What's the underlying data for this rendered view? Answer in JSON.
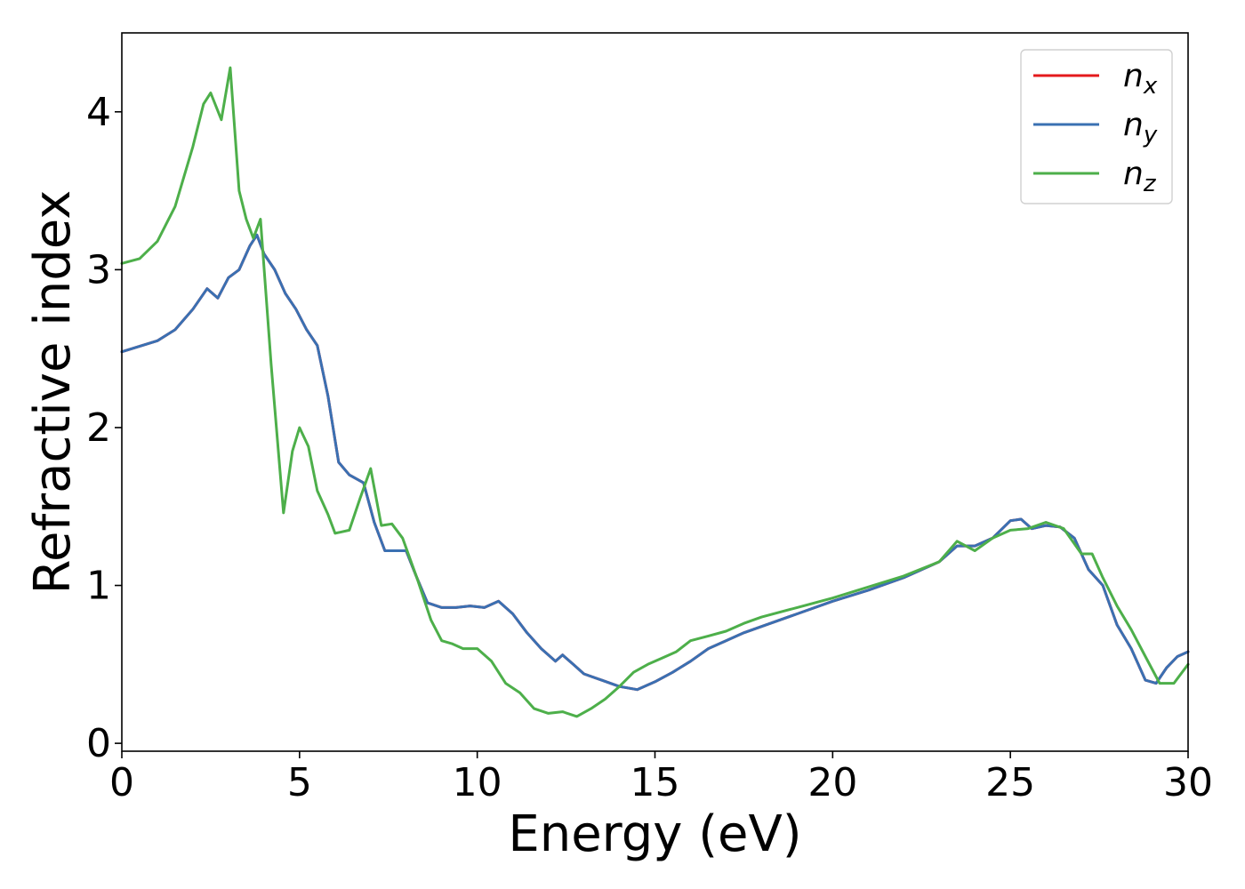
{
  "chart_data": {
    "type": "line",
    "title": "",
    "xlabel": "Energy (eV)",
    "ylabel": "Refractive index",
    "xlim": [
      0,
      30
    ],
    "ylim": [
      -0.05,
      4.5
    ],
    "xticks": [
      0,
      5,
      10,
      15,
      20,
      25,
      30
    ],
    "yticks": [
      0,
      1,
      2,
      3,
      4
    ],
    "grid": false,
    "legend": {
      "placement": "top-right"
    },
    "series": [
      {
        "name": "n",
        "subscript": "x",
        "color": "#e41a1c",
        "x": [
          0,
          1,
          1.5,
          2,
          2.4,
          2.7,
          3,
          3.3,
          3.6,
          3.8,
          4,
          4.3,
          4.6,
          4.9,
          5.2,
          5.5,
          5.8,
          6.1,
          6.4,
          6.8,
          7.1,
          7.4,
          7.7,
          8,
          8.3,
          8.6,
          9,
          9.4,
          9.8,
          10.2,
          10.6,
          11,
          11.4,
          11.8,
          12.2,
          12.4,
          12.7,
          13,
          13.5,
          14,
          14.5,
          15,
          15.5,
          16,
          16.5,
          17,
          17.5,
          18,
          19,
          20,
          21,
          22,
          23,
          23.5,
          24,
          24.5,
          25,
          25.3,
          25.6,
          26,
          26.4,
          26.8,
          27.2,
          27.6,
          28,
          28.4,
          28.8,
          29.1,
          29.4,
          29.7,
          30
        ],
        "y": [
          2.48,
          2.55,
          2.62,
          2.75,
          2.88,
          2.82,
          2.95,
          3.0,
          3.15,
          3.22,
          3.1,
          3.0,
          2.85,
          2.75,
          2.62,
          2.52,
          2.2,
          1.78,
          1.7,
          1.65,
          1.4,
          1.22,
          1.22,
          1.22,
          1.05,
          0.89,
          0.86,
          0.86,
          0.87,
          0.86,
          0.9,
          0.82,
          0.7,
          0.6,
          0.52,
          0.56,
          0.5,
          0.44,
          0.4,
          0.36,
          0.34,
          0.39,
          0.45,
          0.52,
          0.6,
          0.65,
          0.7,
          0.74,
          0.82,
          0.9,
          0.97,
          1.05,
          1.15,
          1.25,
          1.25,
          1.3,
          1.41,
          1.42,
          1.36,
          1.38,
          1.37,
          1.3,
          1.1,
          1.0,
          0.75,
          0.6,
          0.4,
          0.38,
          0.48,
          0.55,
          0.58
        ]
      },
      {
        "name": "n",
        "subscript": "y",
        "color": "#3a70b2",
        "x": [
          0,
          1,
          1.5,
          2,
          2.4,
          2.7,
          3,
          3.3,
          3.6,
          3.8,
          4,
          4.3,
          4.6,
          4.9,
          5.2,
          5.5,
          5.8,
          6.1,
          6.4,
          6.8,
          7.1,
          7.4,
          7.7,
          8,
          8.3,
          8.6,
          9,
          9.4,
          9.8,
          10.2,
          10.6,
          11,
          11.4,
          11.8,
          12.2,
          12.4,
          12.7,
          13,
          13.5,
          14,
          14.5,
          15,
          15.5,
          16,
          16.5,
          17,
          17.5,
          18,
          19,
          20,
          21,
          22,
          23,
          23.5,
          24,
          24.5,
          25,
          25.3,
          25.6,
          26,
          26.4,
          26.8,
          27.2,
          27.6,
          28,
          28.4,
          28.8,
          29.1,
          29.4,
          29.7,
          30
        ],
        "y": [
          2.48,
          2.55,
          2.62,
          2.75,
          2.88,
          2.82,
          2.95,
          3.0,
          3.15,
          3.22,
          3.1,
          3.0,
          2.85,
          2.75,
          2.62,
          2.52,
          2.2,
          1.78,
          1.7,
          1.65,
          1.4,
          1.22,
          1.22,
          1.22,
          1.05,
          0.89,
          0.86,
          0.86,
          0.87,
          0.86,
          0.9,
          0.82,
          0.7,
          0.6,
          0.52,
          0.56,
          0.5,
          0.44,
          0.4,
          0.36,
          0.34,
          0.39,
          0.45,
          0.52,
          0.6,
          0.65,
          0.7,
          0.74,
          0.82,
          0.9,
          0.97,
          1.05,
          1.15,
          1.25,
          1.25,
          1.3,
          1.41,
          1.42,
          1.36,
          1.38,
          1.37,
          1.3,
          1.1,
          1.0,
          0.75,
          0.6,
          0.4,
          0.38,
          0.48,
          0.55,
          0.58
        ]
      },
      {
        "name": "n",
        "subscript": "z",
        "color": "#4daf4a",
        "x": [
          0,
          0.5,
          1,
          1.5,
          2,
          2.3,
          2.5,
          2.8,
          3.05,
          3.3,
          3.5,
          3.7,
          3.9,
          4.2,
          4.55,
          4.8,
          5.0,
          5.25,
          5.5,
          5.8,
          6.0,
          6.4,
          6.7,
          7.0,
          7.3,
          7.6,
          7.9,
          8.3,
          8.7,
          9.0,
          9.3,
          9.6,
          10.0,
          10.4,
          10.8,
          11.2,
          11.6,
          12.0,
          12.4,
          12.8,
          13.2,
          13.6,
          14.0,
          14.4,
          14.8,
          15.2,
          15.6,
          16.0,
          16.5,
          17,
          17.5,
          18,
          19,
          20,
          21,
          22,
          23,
          23.5,
          24,
          24.5,
          25,
          25.5,
          26,
          26.5,
          27,
          27.3,
          27.6,
          28,
          28.4,
          28.8,
          29.2,
          29.6,
          30
        ],
        "y": [
          3.04,
          3.07,
          3.18,
          3.4,
          3.78,
          4.05,
          4.12,
          3.95,
          4.28,
          3.5,
          3.32,
          3.2,
          3.32,
          2.4,
          1.46,
          1.85,
          2.0,
          1.88,
          1.6,
          1.45,
          1.33,
          1.35,
          1.55,
          1.74,
          1.38,
          1.39,
          1.3,
          1.05,
          0.78,
          0.65,
          0.63,
          0.6,
          0.6,
          0.52,
          0.38,
          0.32,
          0.22,
          0.19,
          0.2,
          0.17,
          0.22,
          0.28,
          0.36,
          0.45,
          0.5,
          0.54,
          0.58,
          0.65,
          0.68,
          0.71,
          0.76,
          0.8,
          0.86,
          0.92,
          0.99,
          1.06,
          1.15,
          1.28,
          1.22,
          1.3,
          1.35,
          1.36,
          1.4,
          1.36,
          1.2,
          1.2,
          1.05,
          0.87,
          0.72,
          0.55,
          0.38,
          0.38,
          0.5
        ]
      }
    ]
  }
}
